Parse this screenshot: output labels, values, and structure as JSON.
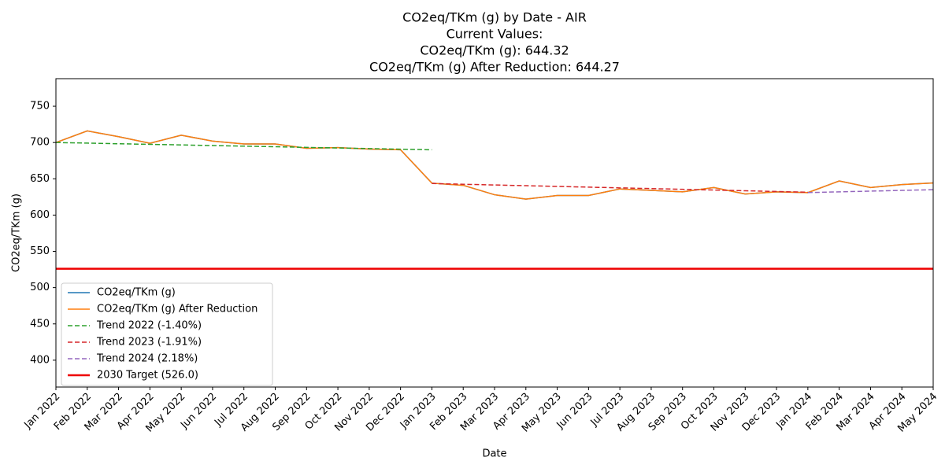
{
  "chart_data": {
    "type": "line",
    "title": [
      "CO2eq/TKm (g) by Date - AIR",
      "Current Values:",
      "CO2eq/TKm (g): 644.32",
      "CO2eq/TKm (g) After Reduction: 644.27"
    ],
    "x_label": "Date",
    "y_label": "CO2eq/TKm (g)",
    "categories": [
      "Jan 2022",
      "Feb 2022",
      "Mar 2022",
      "Apr 2022",
      "May 2022",
      "Jun 2022",
      "Jul 2022",
      "Aug 2022",
      "Sep 2022",
      "Oct 2022",
      "Nov 2022",
      "Dec 2022",
      "Jan 2023",
      "Feb 2023",
      "Mar 2023",
      "Apr 2023",
      "May 2023",
      "Jun 2023",
      "Jul 2023",
      "Aug 2023",
      "Sep 2023",
      "Oct 2023",
      "Nov 2023",
      "Dec 2023",
      "Jan 2024",
      "Feb 2024",
      "Mar 2024",
      "Apr 2024",
      "May 2024"
    ],
    "ylim": [
      363,
      788
    ],
    "yticks": [
      400,
      450,
      500,
      550,
      600,
      650,
      700,
      750
    ],
    "grid": false,
    "legend": "lower left",
    "series": [
      {
        "name": "CO2eq/TKm (g)",
        "color": "#1f77b4",
        "dash": false,
        "values": [
          700,
          716,
          708,
          699,
          710,
          702,
          698,
          698,
          692,
          693,
          691,
          690,
          644,
          641,
          628,
          622,
          627,
          627,
          636,
          634,
          632,
          638,
          629,
          632,
          631,
          647,
          638,
          642,
          644.32
        ]
      },
      {
        "name": "CO2eq/TKm (g) After Reduction",
        "color": "#ff7f0e",
        "dash": false,
        "values": [
          700,
          716,
          708,
          699,
          710,
          702,
          698,
          698,
          692,
          693,
          691,
          690,
          644,
          641,
          628,
          622,
          627,
          627,
          636,
          634,
          632,
          638,
          629,
          632,
          631,
          647,
          638,
          642,
          644.27
        ]
      },
      {
        "name": "Trend 2022 (-1.40%)",
        "color": "#2ca02c",
        "dash": true,
        "values": [
          700,
          699.2,
          698.3,
          697.5,
          696.7,
          695.8,
          695,
          694.2,
          693.3,
          692.5,
          691.7,
          690.8,
          690,
          null,
          null,
          null,
          null,
          null,
          null,
          null,
          null,
          null,
          null,
          null,
          null,
          null,
          null,
          null,
          null
        ]
      },
      {
        "name": "Trend 2023 (-1.91%)",
        "color": "#d62728",
        "dash": true,
        "values": [
          null,
          null,
          null,
          null,
          null,
          null,
          null,
          null,
          null,
          null,
          null,
          null,
          643.5,
          642.5,
          641.5,
          640.5,
          639.5,
          638.5,
          637.5,
          636.5,
          635.5,
          634.5,
          633.5,
          632.5,
          631.5,
          null,
          null,
          null,
          null
        ]
      },
      {
        "name": "Trend 2024 (2.18%)",
        "color": "#9467bd",
        "dash": true,
        "values": [
          null,
          null,
          null,
          null,
          null,
          null,
          null,
          null,
          null,
          null,
          null,
          null,
          null,
          null,
          null,
          null,
          null,
          null,
          null,
          null,
          null,
          null,
          null,
          null,
          631,
          632,
          633,
          634,
          635
        ]
      }
    ],
    "target": {
      "name": "2030 Target (526.0)",
      "value": 526,
      "color": "#ee0000"
    }
  }
}
